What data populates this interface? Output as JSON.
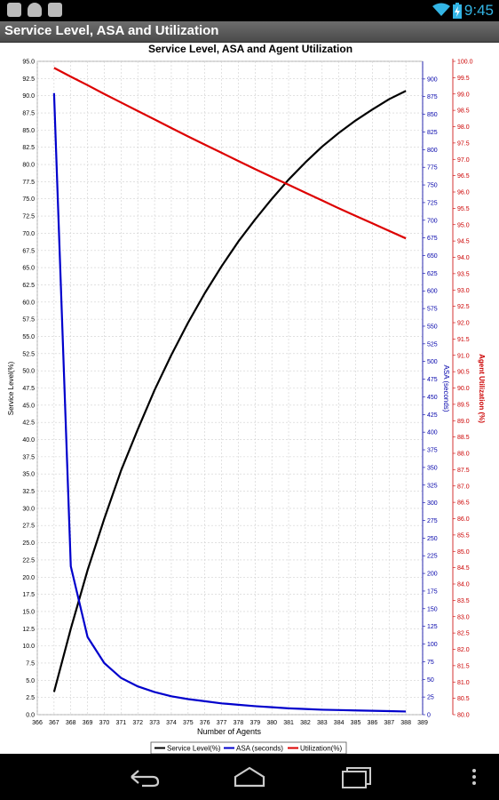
{
  "status_bar": {
    "time": "9:45",
    "left_icons": [
      "checkbox-icon",
      "android-icon",
      "download-icon"
    ],
    "right_icons": [
      "wifi-icon",
      "battery-charging-icon"
    ]
  },
  "app": {
    "title": "Service Level, ASA and Utilization"
  },
  "chart_data": {
    "type": "line",
    "title": "Service Level, ASA and Agent Utilization",
    "xlabel": "Number of Agents",
    "x": [
      367,
      368,
      369,
      370,
      371,
      372,
      373,
      374,
      375,
      376,
      377,
      378,
      379,
      380,
      381,
      382,
      383,
      384,
      385,
      386,
      387,
      388
    ],
    "x_ticks": [
      "366",
      "367",
      "368",
      "369",
      "370",
      "371",
      "372",
      "373",
      "374",
      "375",
      "376",
      "377",
      "378",
      "379",
      "380",
      "381",
      "382",
      "383",
      "384",
      "385",
      "386",
      "387",
      "388",
      "389"
    ],
    "xlim": [
      366,
      389
    ],
    "left_axis": {
      "label": "Service Level(%)",
      "ylim": [
        0,
        95
      ],
      "step": 2.5,
      "color": "#000000"
    },
    "asa_axis": {
      "label": "ASA (seconds)",
      "ylim": [
        0,
        925
      ],
      "step": 25,
      "color": "#0000aa"
    },
    "util_axis": {
      "label": "Agent Utilization (%)",
      "ylim": [
        80,
        100
      ],
      "step": 0.5,
      "color": "#cc0000"
    },
    "grid": true,
    "legend_position": "bottom",
    "series": [
      {
        "name": "Service Level(%)",
        "axis": "left",
        "color": "#000000",
        "values": [
          3.3,
          12.5,
          21.0,
          28.5,
          35.5,
          41.5,
          47.2,
          52.3,
          57.0,
          61.3,
          65.2,
          68.8,
          72.0,
          75.0,
          77.8,
          80.3,
          82.6,
          84.6,
          86.4,
          88.0,
          89.5,
          90.7
        ]
      },
      {
        "name": "ASA (seconds)",
        "axis": "asa",
        "color": "#0000cc",
        "values": [
          880,
          210,
          110,
          73,
          52,
          40,
          32,
          26,
          22,
          19,
          16,
          14,
          12,
          10.5,
          9,
          8,
          7,
          6.5,
          6,
          5.5,
          5,
          4.5
        ]
      },
      {
        "name": "Utilization(%)",
        "axis": "util",
        "color": "#dd0000",
        "values": [
          99.8,
          99.53,
          99.27,
          99.0,
          98.74,
          98.48,
          98.22,
          97.96,
          97.7,
          97.45,
          97.2,
          96.95,
          96.7,
          96.46,
          96.22,
          95.98,
          95.74,
          95.5,
          95.27,
          95.04,
          94.81,
          94.58
        ]
      }
    ]
  }
}
